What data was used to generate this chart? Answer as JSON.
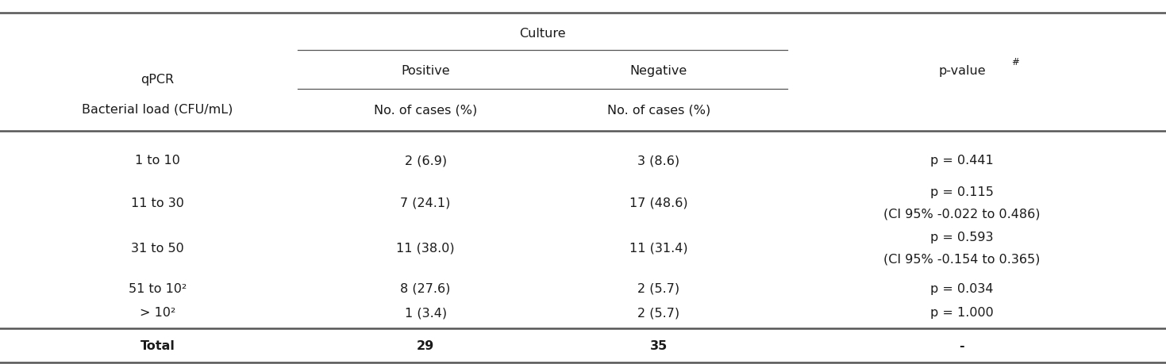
{
  "col1_header_line1": "qPCR",
  "col1_header_line2": "Bacterial load (CFU/mL)",
  "culture_header": "Culture",
  "positive_header": "Positive",
  "negative_header": "Negative",
  "pvalue_header": "p-value",
  "pvalue_sup": "#",
  "subheader": "No. of cases (%)",
  "rows": [
    {
      "load": "1 to 10",
      "positive": "2 (6.9)",
      "negative": "3 (8.6)",
      "pvalue_line1": "p = 0.441",
      "pvalue_line2": ""
    },
    {
      "load": "11 to 30",
      "positive": "7 (24.1)",
      "negative": "17 (48.6)",
      "pvalue_line1": "p = 0.115",
      "pvalue_line2": "(CI 95% -0.022 to 0.486)"
    },
    {
      "load": "31 to 50",
      "positive": "11 (38.0)",
      "negative": "11 (31.4)",
      "pvalue_line1": "p = 0.593",
      "pvalue_line2": "(CI 95% -0.154 to 0.365)"
    },
    {
      "load": "51 to 10²",
      "positive": "8 (27.6)",
      "negative": "2 (5.7)",
      "pvalue_line1": "p = 0.034",
      "pvalue_line2": ""
    },
    {
      "load": "> 10²",
      "positive": "1 (3.4)",
      "negative": "2 (5.7)",
      "pvalue_line1": "p = 1.000",
      "pvalue_line2": ""
    }
  ],
  "total_label": "Total",
  "total_positive": "29",
  "total_negative": "35",
  "total_pvalue": "-",
  "bg_color": "#ffffff",
  "text_color": "#1a1a1a",
  "line_color": "#555555",
  "font_size": 11.5
}
